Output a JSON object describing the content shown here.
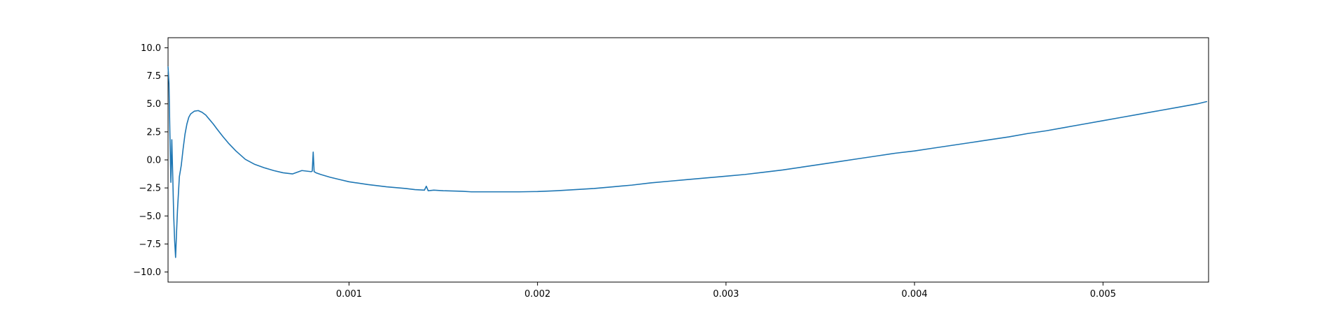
{
  "chart_data": {
    "type": "line",
    "title": "",
    "xlabel": "",
    "ylabel": "",
    "xlim": [
      4e-05,
      0.00556
    ],
    "ylim": [
      -10.9,
      10.9
    ],
    "x_ticks": [
      {
        "value": 0.001,
        "label": "0.001"
      },
      {
        "value": 0.002,
        "label": "0.002"
      },
      {
        "value": 0.003,
        "label": "0.003"
      },
      {
        "value": 0.004,
        "label": "0.004"
      },
      {
        "value": 0.005,
        "label": "0.005"
      }
    ],
    "y_ticks": [
      {
        "value": 10.0,
        "label": "10.0"
      },
      {
        "value": 7.5,
        "label": "7.5"
      },
      {
        "value": 5.0,
        "label": "5.0"
      },
      {
        "value": 2.5,
        "label": "2.5"
      },
      {
        "value": 0.0,
        "label": "0.0"
      },
      {
        "value": -2.5,
        "label": "−2.5"
      },
      {
        "value": -5.0,
        "label": "−5.0"
      },
      {
        "value": -7.5,
        "label": "−7.5"
      },
      {
        "value": -10.0,
        "label": "−10.0"
      }
    ],
    "grid": false,
    "legend": "none",
    "series": [
      {
        "color": "#1f77b4",
        "x": [
          4e-05,
          4.5e-05,
          5e-05,
          5.5e-05,
          6e-05,
          6.5e-05,
          7e-05,
          7.5e-05,
          8e-05,
          8.5e-05,
          9e-05,
          0.0001,
          0.00011,
          0.00012,
          0.00013,
          0.00014,
          0.00015,
          0.00016,
          0.00018,
          0.0002,
          0.00022,
          0.00024,
          0.00026,
          0.00028,
          0.0003,
          0.00033,
          0.00036,
          0.0004,
          0.00045,
          0.0005,
          0.00055,
          0.0006,
          0.00065,
          0.0007,
          0.00075,
          0.0008,
          0.000805,
          0.00081,
          0.000815,
          0.00082,
          0.000825,
          0.00085,
          0.0009,
          0.00095,
          0.001,
          0.0011,
          0.0012,
          0.0013,
          0.00135,
          0.0014,
          0.00141,
          0.00142,
          0.00145,
          0.0015,
          0.0016,
          0.00165,
          0.0017,
          0.0018,
          0.0019,
          0.002,
          0.0021,
          0.0022,
          0.0023,
          0.0024,
          0.0025,
          0.0026,
          0.0027,
          0.0028,
          0.0029,
          0.003,
          0.0031,
          0.0032,
          0.0033,
          0.0034,
          0.0035,
          0.0036,
          0.0037,
          0.0038,
          0.0039,
          0.004,
          0.0041,
          0.0042,
          0.0043,
          0.0044,
          0.0045,
          0.0046,
          0.0047,
          0.0048,
          0.0049,
          0.005,
          0.0051,
          0.0052,
          0.0053,
          0.0054,
          0.0055,
          0.00555
        ],
        "y": [
          8.3,
          6.8,
          2.2,
          -2.0,
          1.8,
          -1.5,
          -5.0,
          -7.2,
          -8.7,
          -6.5,
          -4.5,
          -1.5,
          -0.5,
          1.0,
          2.3,
          3.2,
          3.8,
          4.1,
          4.35,
          4.4,
          4.25,
          4.0,
          3.6,
          3.2,
          2.75,
          2.1,
          1.5,
          0.8,
          0.05,
          -0.4,
          -0.7,
          -0.95,
          -1.15,
          -1.25,
          -0.95,
          -1.05,
          -1.0,
          0.7,
          -1.05,
          -1.1,
          -1.15,
          -1.3,
          -1.55,
          -1.75,
          -1.95,
          -2.2,
          -2.4,
          -2.55,
          -2.65,
          -2.7,
          -2.35,
          -2.75,
          -2.7,
          -2.75,
          -2.8,
          -2.85,
          -2.85,
          -2.85,
          -2.85,
          -2.82,
          -2.75,
          -2.65,
          -2.55,
          -2.4,
          -2.25,
          -2.05,
          -1.9,
          -1.75,
          -1.6,
          -1.45,
          -1.3,
          -1.1,
          -0.9,
          -0.65,
          -0.4,
          -0.15,
          0.1,
          0.35,
          0.6,
          0.8,
          1.05,
          1.3,
          1.55,
          1.8,
          2.05,
          2.35,
          2.6,
          2.9,
          3.2,
          3.5,
          3.8,
          4.1,
          4.4,
          4.7,
          5.0,
          5.2
        ]
      }
    ]
  }
}
